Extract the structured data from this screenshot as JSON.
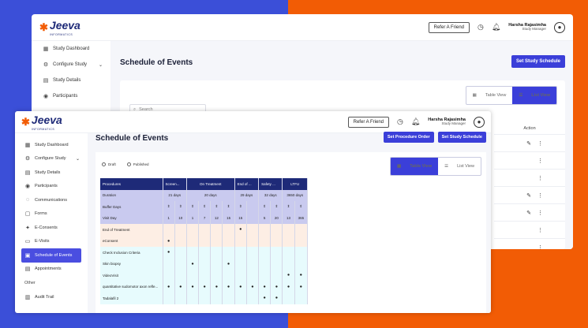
{
  "brand": {
    "name": "Jeeva",
    "tagline": "INFORMATICS"
  },
  "header": {
    "refer_label": "Refer A Friend",
    "user_name": "Harsha Rajasimha",
    "user_role": "Study Manager"
  },
  "back": {
    "sidebar": [
      "Study Dashboard",
      "Configure Study",
      "Study Details",
      "Participants"
    ],
    "title": "Schedule of Events",
    "cta": "Set Study Schedule",
    "toggle_table": "Table View",
    "toggle_list": "List View",
    "search_placeholder": "Search",
    "action_header": "Action"
  },
  "front": {
    "sidebar": [
      "Study Dashboard",
      "Configure Study",
      "Study Details",
      "Participants",
      "Communications",
      "Forms",
      "E-Consents",
      "E-Visits",
      "Schedule of Events",
      "Appointments"
    ],
    "other_label": "Other",
    "audit_trail": "Audit Trail",
    "title": "Schedule of Events",
    "cta_procedure": "Set Procedure Order",
    "cta_schedule": "Set Study Schedule",
    "radio_draft": "Draft",
    "radio_published": "Published",
    "toggle_table": "Table View",
    "toggle_list": "List View"
  },
  "table": {
    "header": [
      "Procedures",
      "Screen...",
      "On Treatment",
      "End of ...",
      "Safety ...",
      "LTFU"
    ],
    "duration_label": "Duration",
    "durations": [
      "21 days",
      "20 days",
      "29 days",
      "32 days",
      "3650 days"
    ],
    "buffer_label": "Buffer Days",
    "visit_label": "Visit Day",
    "visit_days": [
      "1",
      "10",
      "1",
      "7",
      "12",
      "15",
      "15",
      "5",
      "20",
      "13",
      "365"
    ],
    "procedures": [
      "End of Treatment",
      "eConsent",
      "Check Inclusion Criteria",
      "Skin biopsy",
      "VideoVisit",
      "quantitative sudomotor axon refle...",
      "Tadalafil 2"
    ]
  },
  "colors": {
    "primary": "#3b3fd9",
    "navy": "#1e2a78",
    "orange": "#f25c05",
    "blue_bg": "#3b4fd8"
  }
}
